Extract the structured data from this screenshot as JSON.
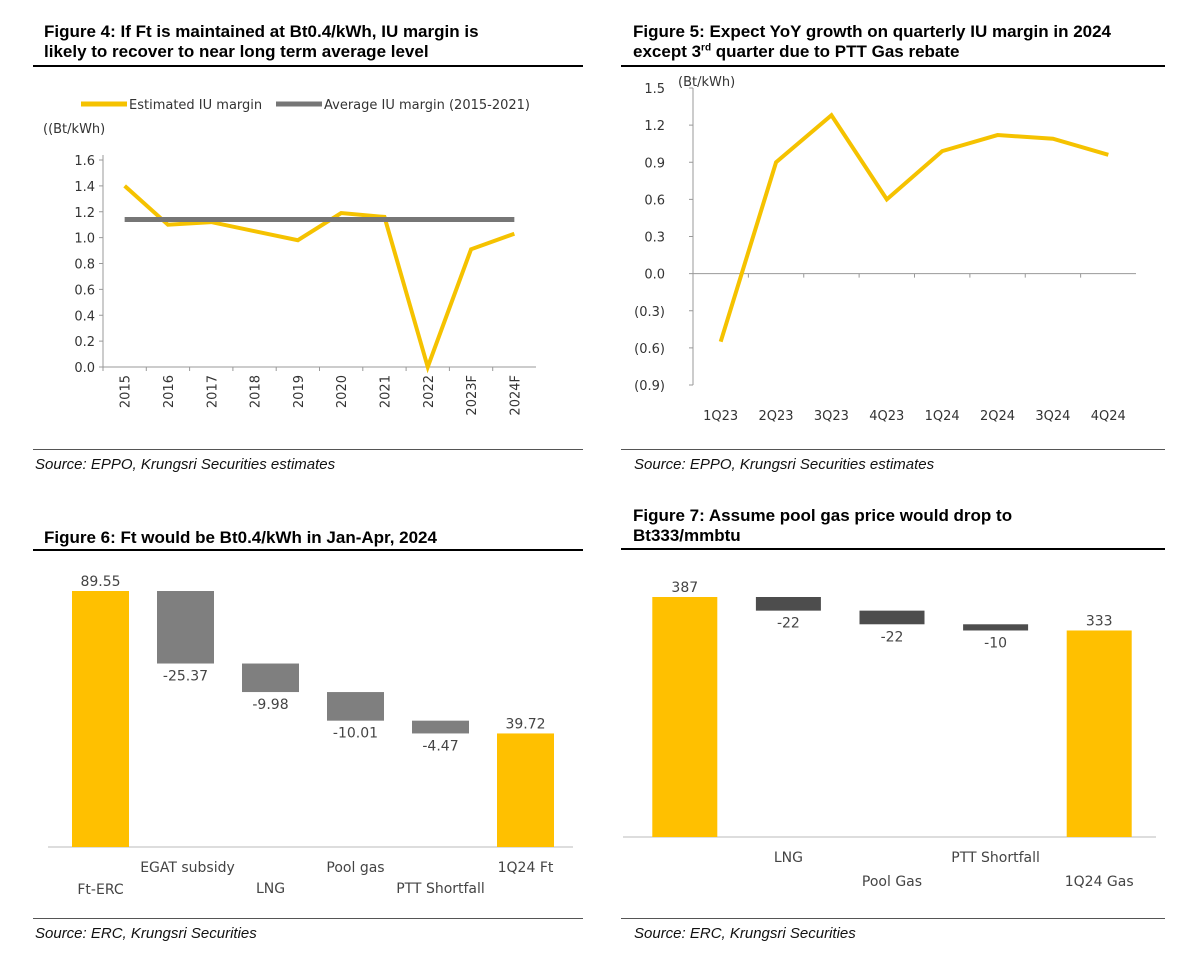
{
  "figures": [
    {
      "id": "fig4",
      "title_prefix": "Figure 4:",
      "title_line1": " If Ft is maintained at Bt0.4/kWh, IU margin is",
      "title_line2": "likely to recover to near long term average level",
      "source": "Source: EPPO, Krungsri Securities estimates"
    },
    {
      "id": "fig5",
      "title_prefix": "Figure 5:",
      "title_line1": " Expect YoY growth on quarterly IU margin in 2024",
      "title_line2a": "except 3",
      "title_sup": "rd",
      "title_line2b": " quarter due to PTT Gas rebate",
      "source": "Source: EPPO, Krungsri Securities estimates"
    },
    {
      "id": "fig6",
      "title_prefix": "Figure 6:",
      "title_line1": " Ft would be Bt0.4/kWh in Jan-Apr, 2024",
      "source": "Source: ERC, Krungsri Securities"
    },
    {
      "id": "fig7",
      "title_prefix": "Figure 7:",
      "title_line1": " Assume pool gas price would drop to",
      "title_line2": "Bt333/mmbtu",
      "source": "Source: ERC, Krungsri Securities"
    }
  ],
  "chart_data": [
    {
      "type": "line",
      "unit_label": "((Bt/kWh)",
      "categories": [
        "2015",
        "2016",
        "2017",
        "2018",
        "2019",
        "2020",
        "2021",
        "2022",
        "2023F",
        "2024F"
      ],
      "series": [
        {
          "name": "Estimated IU margin",
          "color": "#F5C200",
          "values": [
            1.4,
            1.1,
            1.12,
            1.05,
            0.98,
            1.19,
            1.16,
            0.0,
            0.91,
            1.03
          ]
        },
        {
          "name": "Average IU margin (2015-2021)",
          "color": "#767676",
          "values": [
            1.14,
            1.14,
            1.14,
            1.14,
            1.14,
            1.14,
            1.14,
            1.14,
            1.14,
            1.14
          ]
        }
      ],
      "ylim": [
        0,
        1.6
      ],
      "yticks": [
        "0.0",
        "0.2",
        "0.4",
        "0.6",
        "0.8",
        "1.0",
        "1.2",
        "1.4",
        "1.6"
      ]
    },
    {
      "type": "line",
      "unit_label": "(Bt/kWh)",
      "categories": [
        "1Q23",
        "2Q23",
        "3Q23",
        "4Q23",
        "1Q24",
        "2Q24",
        "3Q24",
        "4Q24"
      ],
      "series": [
        {
          "name": "IU margin",
          "color": "#F5C200",
          "values": [
            -0.55,
            0.9,
            1.28,
            0.6,
            0.99,
            1.12,
            1.09,
            0.96
          ]
        }
      ],
      "ylim": [
        -0.9,
        1.5
      ],
      "yticks": [
        "(0.9)",
        "(0.6)",
        "(0.3)",
        "0.0",
        "0.3",
        "0.6",
        "0.9",
        "1.2",
        "1.5"
      ]
    },
    {
      "type": "bar",
      "subtype": "waterfall",
      "categories": [
        "Ft-ERC",
        "EGAT subsidy",
        "LNG",
        "Pool gas",
        "PTT Shortfall",
        "1Q24 Ft"
      ],
      "values": [
        89.55,
        -25.37,
        -9.98,
        -10.01,
        -4.47,
        39.72
      ],
      "labels": [
        "89.55",
        "-25.37",
        "-9.98",
        "-10.01",
        "-4.47",
        "39.72"
      ],
      "kinds": [
        "total",
        "delta",
        "delta",
        "delta",
        "delta",
        "total"
      ],
      "colors": {
        "total": "#FFC000",
        "delta": "#7F7F7F"
      }
    },
    {
      "type": "bar",
      "subtype": "waterfall",
      "categories": [
        "",
        "LNG",
        "Pool Gas",
        "PTT Shortfall",
        "1Q24 Gas"
      ],
      "values": [
        387,
        -22,
        -22,
        -10,
        333
      ],
      "labels": [
        "387",
        "-22",
        "-22",
        "-10",
        "333"
      ],
      "kinds": [
        "total",
        "delta",
        "delta",
        "delta",
        "total"
      ],
      "colors": {
        "total": "#FFC000",
        "delta": "#4D4D4D"
      }
    }
  ]
}
